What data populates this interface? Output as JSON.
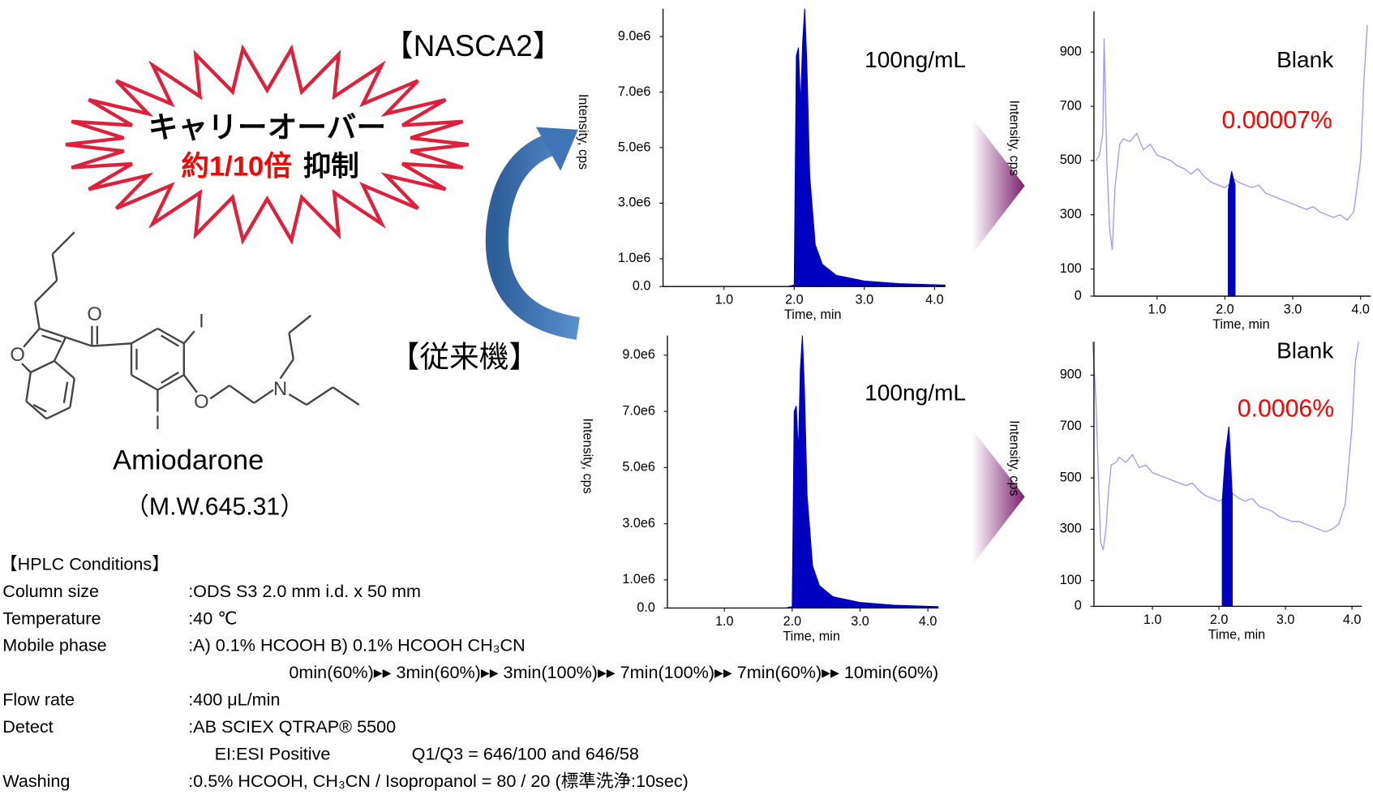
{
  "slide": {
    "nasca": "【NASCA2】",
    "conventional": "【従来機】",
    "burst_line1": "キャリーオーバー",
    "burst_red": "約1/10倍",
    "burst_black": "抑制",
    "compound": "Amiodarone",
    "mw": "（M.W.645.31）",
    "hplc": {
      "title": "【HPLC Conditions】",
      "rows": [
        [
          "Column size",
          ":ODS S3 2.0 mm i.d. x 50 mm"
        ],
        [
          "Temperature",
          ":40 ℃"
        ],
        [
          "Mobile phase",
          ":A) 0.1% HCOOH  B) 0.1% HCOOH CH₃CN"
        ],
        [
          "0min(60%)▸▸ 3min(60%)▸▸ 3min(100%)▸▸ 7min(100%)▸▸ 7min(60%)▸▸ 10min(60%)"
        ],
        [
          "Flow rate",
          ":400  μL/min"
        ],
        [
          "Detect",
          ":AB SCIEX QTRAP® 5500"
        ],
        [
          "EI:ESI Positive",
          "Q1/Q3 = 646/100 and 646/58"
        ],
        [
          "Washing",
          ":0.5% HCOOH, CH₃CN / Isopropanol = 80 / 20 (標準洗浄:10sec)"
        ]
      ]
    }
  },
  "chart_data": [
    {
      "type": "line",
      "xlabel": "Time, min",
      "ylabel": "Intensity, cps",
      "annotations": [
        {
          "text": "100ng/mL",
          "color": "#000000"
        }
      ],
      "x": [
        0.13,
        1.0,
        1.9,
        2.0,
        2.03,
        2.06,
        2.09,
        2.12,
        2.15,
        2.18,
        2.22,
        2.3,
        2.4,
        2.6,
        3.0,
        3.5,
        4.15
      ],
      "series": [
        {
          "color": "#0000c0",
          "fill": true,
          "values": [
            0,
            0,
            0,
            50000,
            8300000,
            8600000,
            6500000,
            8800000,
            10000000,
            8000000,
            4000000,
            1500000,
            800000,
            400000,
            200000,
            100000,
            50000
          ]
        }
      ],
      "xlim": [
        0.13,
        4.15
      ],
      "ylim": [
        0,
        10000000
      ],
      "xticks": [
        {
          "value": 1,
          "label": "1.0"
        },
        {
          "value": 2,
          "label": "2.0"
        },
        {
          "value": 3,
          "label": "3.0"
        },
        {
          "value": 4,
          "label": "4.0"
        }
      ],
      "yticks": [
        {
          "value": 0,
          "label": "0.0"
        },
        {
          "value": 1000000,
          "label": "1.0e6"
        },
        {
          "value": 3000000,
          "label": "3.0e6"
        },
        {
          "value": 5000000,
          "label": "5.0e6"
        },
        {
          "value": 7000000,
          "label": "7.0e6"
        },
        {
          "value": 9000000,
          "label": "9.0e6"
        }
      ]
    },
    {
      "type": "line",
      "xlabel": "Time, min",
      "ylabel": "Intensity, cps",
      "annotations": [
        {
          "text": "100ng/mL",
          "color": "#000000"
        }
      ],
      "x": [
        0.16,
        1.0,
        1.9,
        2.0,
        2.03,
        2.06,
        2.09,
        2.12,
        2.15,
        2.18,
        2.22,
        2.3,
        2.4,
        2.6,
        3.0,
        3.5,
        4.15
      ],
      "series": [
        {
          "color": "#0000c0",
          "fill": true,
          "values": [
            0,
            0,
            0,
            50000,
            7000000,
            7200000,
            5500000,
            8500000,
            9700000,
            7800000,
            4000000,
            1500000,
            800000,
            400000,
            200000,
            100000,
            50000
          ]
        }
      ],
      "xlim": [
        0.16,
        4.15
      ],
      "ylim": [
        0,
        9700000
      ],
      "xticks": [
        {
          "value": 1,
          "label": "1.0"
        },
        {
          "value": 2,
          "label": "2.0"
        },
        {
          "value": 3,
          "label": "3.0"
        },
        {
          "value": 4,
          "label": "4.0"
        }
      ],
      "yticks": [
        {
          "value": 0,
          "label": "0.0"
        },
        {
          "value": 1000000,
          "label": "1.0e6"
        },
        {
          "value": 3000000,
          "label": "3.0e6"
        },
        {
          "value": 5000000,
          "label": "5.0e6"
        },
        {
          "value": 7000000,
          "label": "7.0e6"
        },
        {
          "value": 9000000,
          "label": "9.0e6"
        }
      ]
    },
    {
      "type": "line",
      "xlabel": "Time, min",
      "ylabel": "Intensity, cps",
      "annotations": [
        {
          "text": "Blank",
          "color": "#000000"
        },
        {
          "text": "0.00007%",
          "color": "#ff0000"
        }
      ],
      "x": [
        0.1,
        0.15,
        0.2,
        0.22,
        0.26,
        0.3,
        0.34,
        0.38,
        0.45,
        0.5,
        0.6,
        0.7,
        0.8,
        0.9,
        1.0,
        1.1,
        1.2,
        1.3,
        1.4,
        1.5,
        1.6,
        1.7,
        1.8,
        1.9,
        2.0,
        2.05,
        2.1,
        2.15,
        2.2,
        2.3,
        2.4,
        2.5,
        2.6,
        2.7,
        2.8,
        2.9,
        3.0,
        3.1,
        3.2,
        3.3,
        3.4,
        3.5,
        3.6,
        3.7,
        3.8,
        3.9,
        4.0,
        4.05,
        4.1
      ],
      "series": [
        {
          "color": "#9a9af0",
          "fill": false,
          "values": [
            500,
            520,
            600,
            950,
            500,
            250,
            170,
            400,
            560,
            580,
            570,
            600,
            540,
            560,
            520,
            510,
            500,
            480,
            470,
            450,
            470,
            440,
            420,
            410,
            400,
            410,
            420,
            430,
            420,
            410,
            400,
            410,
            380,
            370,
            360,
            350,
            340,
            330,
            320,
            330,
            310,
            300,
            290,
            300,
            280,
            310,
            500,
            800,
            1000
          ]
        },
        {
          "color": "#0000c0",
          "fill": true,
          "values": [
            null,
            null,
            null,
            null,
            null,
            null,
            null,
            null,
            null,
            null,
            null,
            null,
            null,
            null,
            null,
            null,
            null,
            null,
            null,
            null,
            null,
            null,
            null,
            null,
            null,
            390,
            460,
            410,
            null,
            null,
            null,
            null,
            null,
            null,
            null,
            null,
            null,
            null,
            null,
            null,
            null,
            null,
            null,
            null,
            null,
            null,
            null,
            null,
            null
          ]
        }
      ],
      "xlim": [
        0.07,
        4.15
      ],
      "ylim": [
        0,
        1050
      ],
      "xticks": [
        {
          "value": 1,
          "label": "1.0"
        },
        {
          "value": 2,
          "label": "2.0"
        },
        {
          "value": 3,
          "label": "3.0"
        },
        {
          "value": 4,
          "label": "4.0"
        }
      ],
      "yticks": [
        0,
        100,
        300,
        500,
        700,
        900
      ]
    },
    {
      "type": "line",
      "xlabel": "Time, min",
      "ylabel": "Intensity, cps",
      "annotations": [
        {
          "text": "Blank",
          "color": "#000000"
        },
        {
          "text": "0.0006%",
          "color": "#ff0000"
        }
      ],
      "x": [
        0.1,
        0.15,
        0.2,
        0.22,
        0.26,
        0.3,
        0.34,
        0.38,
        0.45,
        0.5,
        0.6,
        0.7,
        0.8,
        0.9,
        1.0,
        1.1,
        1.2,
        1.3,
        1.4,
        1.5,
        1.6,
        1.7,
        1.8,
        1.9,
        2.0,
        2.05,
        2.1,
        2.15,
        2.2,
        2.3,
        2.4,
        2.5,
        2.6,
        2.7,
        2.8,
        2.9,
        3.0,
        3.1,
        3.2,
        3.3,
        3.4,
        3.5,
        3.6,
        3.7,
        3.8,
        3.9,
        4.0,
        4.05,
        4.1
      ],
      "series": [
        {
          "color": "#9a9af0",
          "fill": false,
          "values": [
            1030,
            800,
            400,
            250,
            220,
            300,
            450,
            550,
            560,
            580,
            560,
            590,
            540,
            550,
            520,
            510,
            500,
            490,
            480,
            470,
            480,
            450,
            430,
            420,
            410,
            415,
            420,
            430,
            440,
            420,
            410,
            420,
            390,
            380,
            370,
            350,
            340,
            330,
            330,
            320,
            310,
            300,
            290,
            300,
            320,
            400,
            700,
            950,
            1030
          ]
        },
        {
          "color": "#0000c0",
          "fill": true,
          "values": [
            null,
            null,
            null,
            null,
            null,
            null,
            null,
            null,
            null,
            null,
            null,
            null,
            null,
            null,
            null,
            null,
            null,
            null,
            null,
            null,
            null,
            null,
            null,
            null,
            null,
            410,
            600,
            700,
            430,
            null,
            null,
            null,
            null,
            null,
            null,
            null,
            null,
            null,
            null,
            null,
            null,
            null,
            null,
            null,
            null,
            null,
            null,
            null,
            null
          ]
        }
      ],
      "xlim": [
        0.12,
        4.15
      ],
      "ylim": [
        0,
        1030
      ],
      "xticks": [
        {
          "value": 1,
          "label": "1.0"
        },
        {
          "value": 2,
          "label": "2.0"
        },
        {
          "value": 3,
          "label": "3.0"
        },
        {
          "value": 4,
          "label": "4.0"
        }
      ],
      "yticks": [
        0,
        100,
        300,
        500,
        700,
        900
      ]
    }
  ]
}
